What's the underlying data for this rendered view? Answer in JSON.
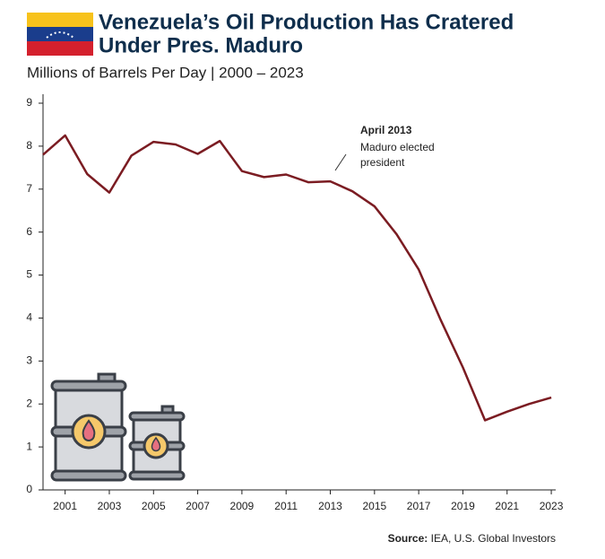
{
  "chart_data": {
    "type": "line",
    "title": [
      "Venezuela’s Oil Production Has Cratered",
      "Under Pres. Maduro"
    ],
    "subtitle": "Millions of Barrels Per Day | 2000 – 2023",
    "annotation": {
      "x": 2013,
      "title": "April 2013",
      "lines": [
        "Maduro elected",
        "president"
      ]
    },
    "source": {
      "label": "Source:",
      "text": "IEA, U.S. Global Investors"
    },
    "x": [
      2000,
      2001,
      2002,
      2003,
      2004,
      2005,
      2006,
      2007,
      2008,
      2009,
      2010,
      2011,
      2012,
      2013,
      2014,
      2015,
      2016,
      2017,
      2018,
      2019,
      2020,
      2021,
      2022,
      2023
    ],
    "series": [
      {
        "name": "Oil production",
        "color": "#7b1c22",
        "values": [
          7.8,
          8.25,
          7.35,
          6.92,
          7.78,
          8.1,
          8.04,
          7.82,
          8.12,
          7.42,
          7.28,
          7.34,
          7.16,
          7.18,
          6.95,
          6.6,
          5.95,
          5.13,
          3.95,
          2.85,
          1.62,
          1.82,
          2.0,
          2.15
        ]
      }
    ],
    "xlim": [
      2000,
      2023.2
    ],
    "xticks": [
      2001,
      2003,
      2005,
      2007,
      2009,
      2011,
      2013,
      2015,
      2017,
      2019,
      2021,
      2023
    ],
    "ylim": [
      0,
      9
    ],
    "yticks": [
      0,
      1,
      2,
      3,
      4,
      5,
      6,
      7,
      8,
      9
    ]
  }
}
